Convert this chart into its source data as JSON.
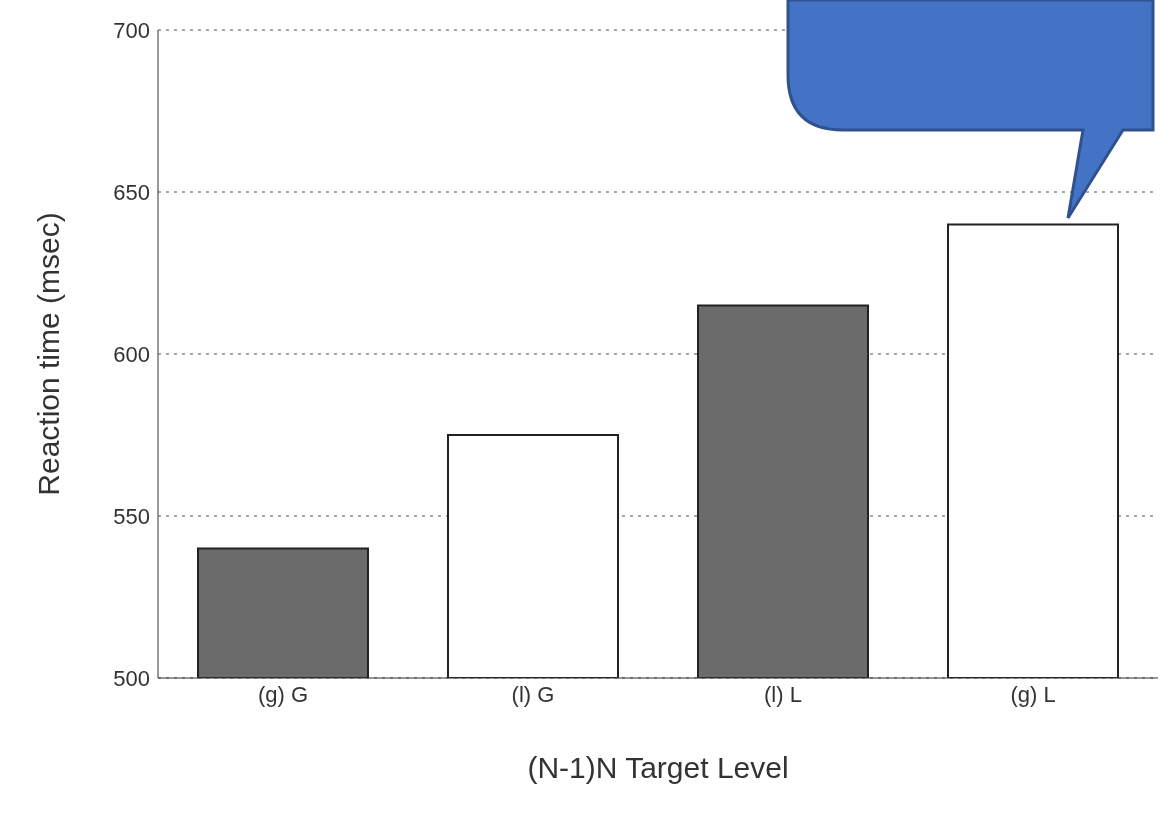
{
  "chart_data": {
    "type": "bar",
    "xlabel": "(N-1)N Target Level",
    "ylabel": "Reaction time (msec)",
    "categories": [
      "(g) G",
      "(l) G",
      "(l) L",
      "(g) L"
    ],
    "values": [
      540,
      575,
      615,
      640
    ],
    "colors": [
      "#6b6b6b",
      "#ffffff",
      "#6b6b6b",
      "#ffffff"
    ],
    "ylim": [
      500,
      700
    ],
    "yticks": [
      500,
      550,
      600,
      650,
      700
    ],
    "grid": "y",
    "legend": false
  }
}
